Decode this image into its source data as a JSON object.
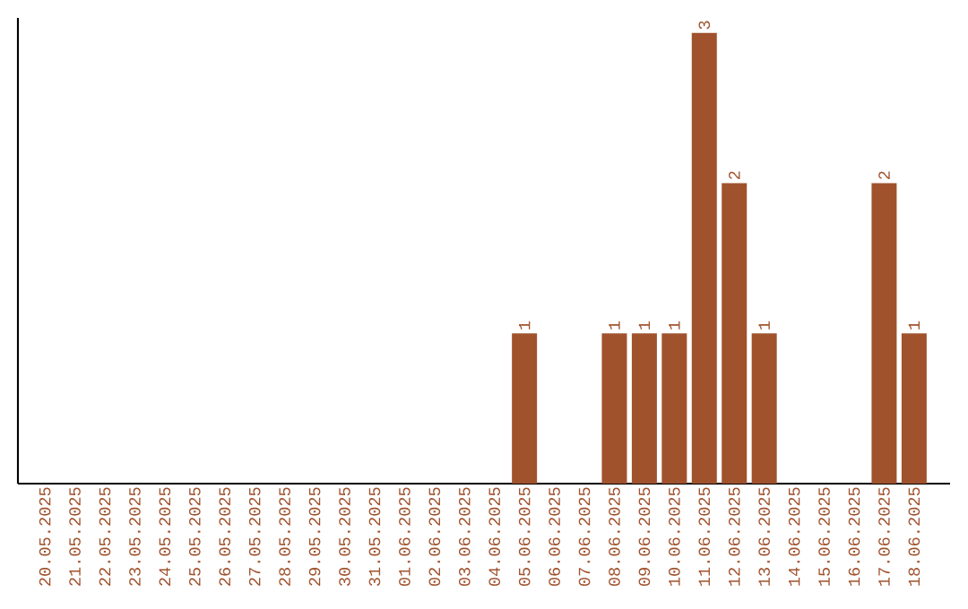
{
  "chart_data": {
    "type": "bar",
    "categories": [
      "20.05.2025",
      "21.05.2025",
      "22.05.2025",
      "23.05.2025",
      "24.05.2025",
      "25.05.2025",
      "26.05.2025",
      "27.05.2025",
      "28.05.2025",
      "29.05.2025",
      "30.05.2025",
      "31.05.2025",
      "01.06.2025",
      "02.06.2025",
      "03.06.2025",
      "04.06.2025",
      "05.06.2025",
      "06.06.2025",
      "07.06.2025",
      "08.06.2025",
      "09.06.2025",
      "10.06.2025",
      "11.06.2025",
      "12.06.2025",
      "13.06.2025",
      "14.06.2025",
      "15.06.2025",
      "16.06.2025",
      "17.06.2025",
      "18.06.2025"
    ],
    "values": [
      null,
      null,
      null,
      null,
      null,
      null,
      null,
      null,
      null,
      null,
      null,
      null,
      null,
      null,
      null,
      null,
      1,
      null,
      null,
      1,
      1,
      1,
      3,
      2,
      1,
      null,
      null,
      null,
      2,
      1
    ],
    "data_labels": true,
    "color": "#a0522d",
    "ylim": [
      0,
      3.1
    ]
  }
}
